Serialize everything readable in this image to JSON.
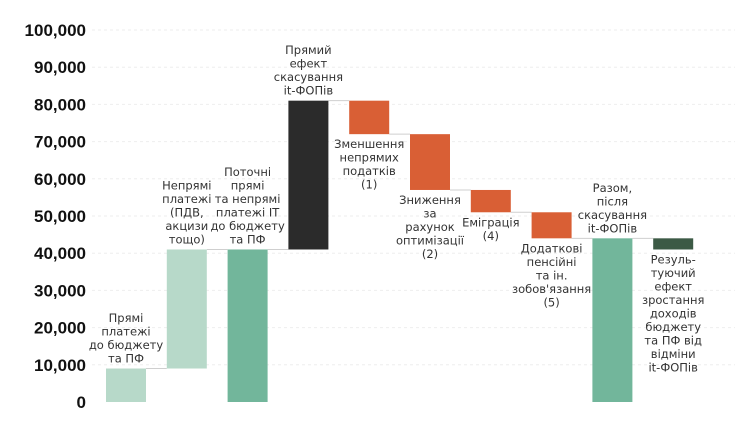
{
  "chart_data": {
    "type": "bar",
    "subtype": "waterfall",
    "title": "",
    "xlabel": "",
    "ylabel": "",
    "ylim": [
      0,
      100000
    ],
    "yticks": [
      0,
      10000,
      20000,
      30000,
      40000,
      50000,
      60000,
      70000,
      80000,
      90000,
      100000
    ],
    "ytick_labels": [
      "0",
      "10,000",
      "20,000",
      "30,000",
      "40,000",
      "50,000",
      "60,000",
      "70,000",
      "80,000",
      "90,000",
      "100,000"
    ],
    "grid": true,
    "categories": [
      {
        "label": [
          "Прямі",
          "платежі",
          "до бюджету",
          "та ПФ"
        ],
        "start": 0,
        "end": 9000,
        "color": "#b7d9c9",
        "label_pos": "above"
      },
      {
        "label": [
          "Непрямі",
          "платежі",
          "(ПДВ,",
          "акцизи",
          "тощо)"
        ],
        "start": 9000,
        "end": 41000,
        "color": "#b7d9c9",
        "label_pos": "above"
      },
      {
        "label": [
          "Поточні",
          "прямі",
          "та непрямі",
          "платежі IT",
          "до бюджету",
          "та ПФ"
        ],
        "start": 0,
        "end": 41000,
        "color": "#72b69b",
        "label_pos": "above"
      },
      {
        "label": [
          "Прямий",
          "ефект",
          "скасування",
          "it-ФОПів"
        ],
        "start": 41000,
        "end": 81000,
        "color": "#2b2b2b",
        "label_pos": "above"
      },
      {
        "label": [
          "Зменшення",
          "непрямих",
          "податків",
          "(1)"
        ],
        "start": 81000,
        "end": 72000,
        "color": "#d95f35",
        "label_pos": "below"
      },
      {
        "label": [
          "Зниження",
          "за",
          "рахунок",
          "оптимізації",
          "(2)"
        ],
        "start": 72000,
        "end": 57000,
        "color": "#d95f35",
        "label_pos": "below"
      },
      {
        "label": [
          "Еміграція",
          "(4)"
        ],
        "start": 57000,
        "end": 51000,
        "color": "#d95f35",
        "label_pos": "below"
      },
      {
        "label": [
          "Додаткові",
          "пенсійні",
          "та ін.",
          "зобов'язання",
          "(5)"
        ],
        "start": 51000,
        "end": 44000,
        "color": "#d95f35",
        "label_pos": "below"
      },
      {
        "label": [
          "Разом,",
          "після",
          "скасування",
          "it-ФОПів"
        ],
        "start": 0,
        "end": 44000,
        "color": "#72b69b",
        "label_pos": "above"
      },
      {
        "label": [
          "Резуль-",
          "туючий",
          "ефект",
          "зростання",
          "доходів",
          "бюджету",
          "та ПФ від",
          "відміни",
          "it-ФОПів"
        ],
        "start": 41000,
        "end": 44000,
        "color": "#3c5a45",
        "label_pos": "below"
      }
    ]
  }
}
